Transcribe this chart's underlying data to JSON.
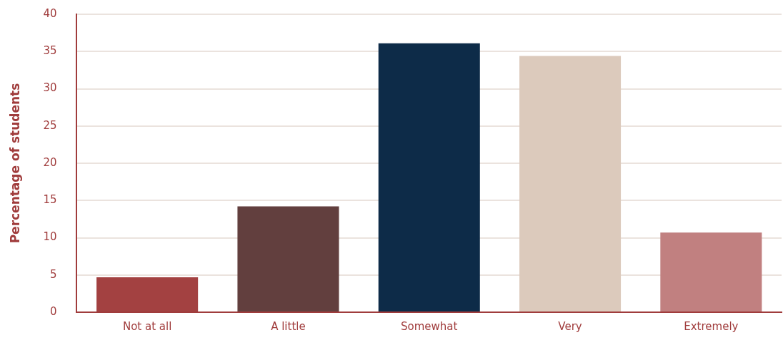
{
  "chart_data": {
    "type": "bar",
    "ylabel": "Percentage of students",
    "categories": [
      "Not at all",
      "A little",
      "Somewhat",
      "Very",
      "Extremely"
    ],
    "values": [
      4.7,
      14.2,
      36.1,
      34.4,
      10.7
    ],
    "colors": [
      "#a34141",
      "#623f3e",
      "#0d2b48",
      "#dccabc",
      "#c18080"
    ],
    "ylim": [
      0,
      40
    ],
    "yticks": [
      0,
      5,
      10,
      15,
      20,
      25,
      30,
      35,
      40
    ],
    "grid": "y",
    "legend": false
  }
}
